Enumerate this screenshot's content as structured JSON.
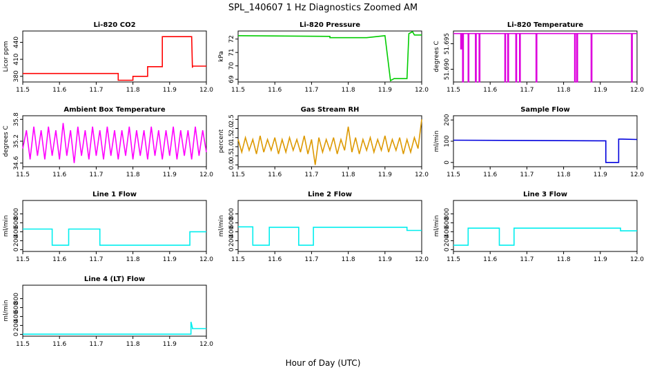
{
  "title": "SPL_140607  1 Hz Diagnostics Zoomed AM",
  "xlabel": "Hour of Day (UTC)",
  "chart_data": [
    {
      "type": "line",
      "title": "Li-820 CO2",
      "ylabel": "Licor ppm",
      "color": "#ff0000",
      "xlim": [
        11.5,
        12.0
      ],
      "ylim": [
        370,
        460
      ],
      "yticks": [
        {
          "v": 380,
          "label": "380"
        },
        {
          "v": 410,
          "label": "410"
        },
        {
          "v": 440,
          "label": "440"
        }
      ],
      "x": [
        11.5,
        11.76,
        11.76,
        11.8,
        11.8,
        11.84,
        11.84,
        11.88,
        11.88,
        11.96,
        11.962,
        11.962,
        12.0
      ],
      "y": [
        385,
        385,
        373,
        373,
        380,
        380,
        397,
        397,
        450,
        450,
        395,
        398,
        398
      ]
    },
    {
      "type": "line",
      "title": "Li-820 Pressure",
      "ylabel": "kPa",
      "color": "#00cc00",
      "xlim": [
        11.5,
        12.0
      ],
      "ylim": [
        68.8,
        72.6
      ],
      "yticks": [
        {
          "v": 69,
          "label": "69"
        },
        {
          "v": 70,
          "label": "70"
        },
        {
          "v": 71,
          "label": "71"
        },
        {
          "v": 72,
          "label": "72"
        }
      ],
      "x": [
        11.5,
        11.75,
        11.75,
        11.85,
        11.9,
        11.915,
        11.925,
        11.96,
        11.965,
        11.975,
        11.98,
        12.0
      ],
      "y": [
        72.25,
        72.2,
        72.1,
        72.1,
        72.25,
        68.9,
        69.05,
        69.05,
        72.4,
        72.55,
        72.3,
        72.3
      ]
    },
    {
      "type": "line",
      "title": "Li-820 Temperature",
      "ylabel": "degrees C",
      "color": "#dd00dd",
      "xlim": [
        11.5,
        12.0
      ],
      "ylim": [
        51.6875,
        51.6975
      ],
      "yticks": [
        {
          "v": 51.69,
          "label": "51.690"
        },
        {
          "v": 51.695,
          "label": "51.695"
        }
      ],
      "x": [
        11.5,
        11.52,
        11.52,
        11.522,
        11.522,
        11.525,
        11.525,
        11.527,
        11.527,
        11.54,
        11.54,
        11.542,
        11.542,
        11.56,
        11.56,
        11.562,
        11.562,
        11.57,
        11.57,
        11.572,
        11.572,
        11.64,
        11.64,
        11.642,
        11.642,
        11.648,
        11.648,
        11.65,
        11.65,
        11.67,
        11.67,
        11.672,
        11.672,
        11.68,
        11.68,
        11.682,
        11.682,
        11.725,
        11.725,
        11.727,
        11.727,
        11.83,
        11.83,
        11.832,
        11.832,
        11.836,
        11.836,
        11.838,
        11.838,
        11.875,
        11.875,
        11.877,
        11.877,
        11.985,
        11.985,
        11.987,
        11.987,
        12.0
      ],
      "y": [
        51.697,
        51.697,
        51.694,
        51.694,
        51.697,
        51.697,
        51.6875,
        51.6875,
        51.697,
        51.697,
        51.6875,
        51.6875,
        51.697,
        51.697,
        51.6875,
        51.6875,
        51.697,
        51.697,
        51.6875,
        51.6875,
        51.697,
        51.697,
        51.6875,
        51.6875,
        51.697,
        51.697,
        51.6875,
        51.6875,
        51.697,
        51.697,
        51.6875,
        51.6875,
        51.697,
        51.697,
        51.6875,
        51.6875,
        51.697,
        51.697,
        51.6875,
        51.6875,
        51.697,
        51.697,
        51.6875,
        51.6875,
        51.697,
        51.697,
        51.6875,
        51.6875,
        51.697,
        51.697,
        51.6875,
        51.6875,
        51.697,
        51.697,
        51.6875,
        51.6875,
        51.697,
        51.697
      ]
    },
    {
      "type": "line",
      "title": "Ambient Box Temperature",
      "ylabel": "degrees C",
      "color": "#ff00ff",
      "xlim": [
        11.5,
        12.0
      ],
      "ylim": [
        34.5,
        35.9
      ],
      "yticks": [
        {
          "v": 34.6,
          "label": "34.6"
        },
        {
          "v": 35.2,
          "label": "35.2"
        },
        {
          "v": 35.8,
          "label": "35.8"
        }
      ],
      "x": [
        11.5,
        11.51,
        11.52,
        11.53,
        11.54,
        11.55,
        11.56,
        11.57,
        11.58,
        11.59,
        11.6,
        11.61,
        11.62,
        11.63,
        11.64,
        11.65,
        11.66,
        11.67,
        11.68,
        11.69,
        11.7,
        11.71,
        11.72,
        11.73,
        11.74,
        11.75,
        11.76,
        11.77,
        11.78,
        11.79,
        11.8,
        11.81,
        11.82,
        11.83,
        11.84,
        11.85,
        11.86,
        11.87,
        11.88,
        11.89,
        11.9,
        11.91,
        11.92,
        11.93,
        11.94,
        11.95,
        11.96,
        11.97,
        11.98,
        11.99,
        12.0
      ],
      "y": [
        35.0,
        35.5,
        34.7,
        35.6,
        34.8,
        35.5,
        34.7,
        35.6,
        34.8,
        35.5,
        34.7,
        35.7,
        34.8,
        35.5,
        34.6,
        35.6,
        34.8,
        35.5,
        34.7,
        35.6,
        34.8,
        35.5,
        34.7,
        35.6,
        34.8,
        35.5,
        34.7,
        35.5,
        34.8,
        35.6,
        34.7,
        35.5,
        34.8,
        35.5,
        34.7,
        35.6,
        34.8,
        35.5,
        34.7,
        35.5,
        34.8,
        35.6,
        34.7,
        35.5,
        34.8,
        35.5,
        34.7,
        35.6,
        34.8,
        35.5,
        34.9
      ]
    },
    {
      "type": "line",
      "title": "Gas Stream RH",
      "ylabel": "percent",
      "color": "#dd9900",
      "xlim": [
        11.5,
        12.0
      ],
      "ylim": [
        -0.1,
        2.7
      ],
      "yticks": [
        {
          "v": 0.0,
          "label": "0.0"
        },
        {
          "v": 0.5,
          "label": "0.5"
        },
        {
          "v": 1.0,
          "label": "1.0"
        },
        {
          "v": 1.5,
          "label": "1.5"
        },
        {
          "v": 2.0,
          "label": "2.0"
        },
        {
          "v": 2.5,
          "label": "2.5"
        }
      ],
      "x": [
        11.5,
        11.51,
        11.52,
        11.53,
        11.54,
        11.55,
        11.56,
        11.57,
        11.58,
        11.59,
        11.6,
        11.61,
        11.62,
        11.63,
        11.64,
        11.65,
        11.66,
        11.67,
        11.68,
        11.69,
        11.7,
        11.71,
        11.72,
        11.73,
        11.74,
        11.75,
        11.76,
        11.77,
        11.78,
        11.79,
        11.8,
        11.81,
        11.82,
        11.83,
        11.84,
        11.85,
        11.86,
        11.87,
        11.88,
        11.89,
        11.9,
        11.91,
        11.92,
        11.93,
        11.94,
        11.95,
        11.96,
        11.97,
        11.98,
        11.99,
        12.0
      ],
      "y": [
        1.4,
        0.7,
        1.5,
        0.8,
        1.4,
        0.6,
        1.6,
        0.7,
        1.4,
        0.8,
        1.5,
        0.6,
        1.4,
        0.7,
        1.5,
        0.8,
        1.4,
        0.7,
        1.6,
        0.6,
        1.4,
        0.0,
        1.5,
        0.7,
        1.4,
        0.8,
        1.5,
        0.6,
        1.4,
        0.8,
        2.1,
        0.7,
        1.5,
        0.6,
        1.4,
        0.8,
        1.5,
        0.7,
        1.4,
        0.8,
        1.6,
        0.7,
        1.4,
        0.8,
        1.5,
        0.6,
        1.4,
        0.7,
        1.5,
        0.9,
        2.5
      ]
    },
    {
      "type": "line",
      "title": "Sample Flow",
      "ylabel": "ml/min",
      "color": "#0000dd",
      "xlim": [
        11.5,
        12.0
      ],
      "ylim": [
        -20,
        220
      ],
      "yticks": [
        {
          "v": 0,
          "label": "0"
        },
        {
          "v": 100,
          "label": "100"
        },
        {
          "v": 200,
          "label": "200"
        }
      ],
      "x": [
        11.5,
        11.9,
        11.915,
        11.915,
        11.95,
        11.95,
        11.96,
        12.0
      ],
      "y": [
        105,
        102,
        102,
        0,
        0,
        110,
        110,
        108
      ]
    },
    {
      "type": "line",
      "title": "Line 1 Flow",
      "ylabel": "ml/min",
      "color": "#00eeee",
      "xlim": [
        11.5,
        12.0
      ],
      "ylim": [
        -40,
        1100
      ],
      "yticks": [
        {
          "v": 0,
          "label": "0"
        },
        {
          "v": 200,
          "label": "200"
        },
        {
          "v": 400,
          "label": "400"
        },
        {
          "v": 600,
          "label": "600"
        },
        {
          "v": 800,
          "label": "800"
        }
      ],
      "x": [
        11.5,
        11.58,
        11.58,
        11.625,
        11.625,
        11.71,
        11.71,
        11.955,
        11.955,
        12.0
      ],
      "y": [
        460,
        460,
        100,
        100,
        460,
        460,
        100,
        100,
        400,
        400
      ]
    },
    {
      "type": "line",
      "title": "Line 2 Flow",
      "ylabel": "ml/min",
      "color": "#00eeee",
      "xlim": [
        11.5,
        12.0
      ],
      "ylim": [
        -40,
        1100
      ],
      "yticks": [
        {
          "v": 0,
          "label": "0"
        },
        {
          "v": 200,
          "label": "200"
        },
        {
          "v": 400,
          "label": "400"
        },
        {
          "v": 600,
          "label": "600"
        },
        {
          "v": 800,
          "label": "800"
        }
      ],
      "x": [
        11.5,
        11.54,
        11.54,
        11.585,
        11.585,
        11.665,
        11.665,
        11.705,
        11.705,
        11.96,
        11.96,
        12.0
      ],
      "y": [
        510,
        510,
        100,
        100,
        500,
        500,
        100,
        100,
        500,
        500,
        430,
        430
      ]
    },
    {
      "type": "line",
      "title": "Line 3 Flow",
      "ylabel": "ml/min",
      "color": "#00eeee",
      "xlim": [
        11.5,
        12.0
      ],
      "ylim": [
        -40,
        1100
      ],
      "yticks": [
        {
          "v": 0,
          "label": "0"
        },
        {
          "v": 200,
          "label": "200"
        },
        {
          "v": 400,
          "label": "400"
        },
        {
          "v": 600,
          "label": "600"
        },
        {
          "v": 800,
          "label": "800"
        }
      ],
      "x": [
        11.5,
        11.54,
        11.54,
        11.625,
        11.625,
        11.665,
        11.665,
        11.955,
        11.955,
        12.0
      ],
      "y": [
        100,
        100,
        480,
        480,
        100,
        100,
        480,
        480,
        420,
        420
      ]
    },
    {
      "type": "line",
      "title": "Line 4 (LT) Flow",
      "ylabel": "ml/min",
      "color": "#00eeee",
      "xlim": [
        11.5,
        12.0
      ],
      "ylim": [
        -40,
        1100
      ],
      "yticks": [
        {
          "v": 0,
          "label": "0"
        },
        {
          "v": 200,
          "label": "200"
        },
        {
          "v": 400,
          "label": "400"
        },
        {
          "v": 600,
          "label": "600"
        },
        {
          "v": 800,
          "label": "800"
        }
      ],
      "x": [
        11.5,
        11.958,
        11.958,
        11.962,
        11.962,
        12.0
      ],
      "y": [
        5,
        5,
        280,
        150,
        130,
        130
      ]
    }
  ]
}
